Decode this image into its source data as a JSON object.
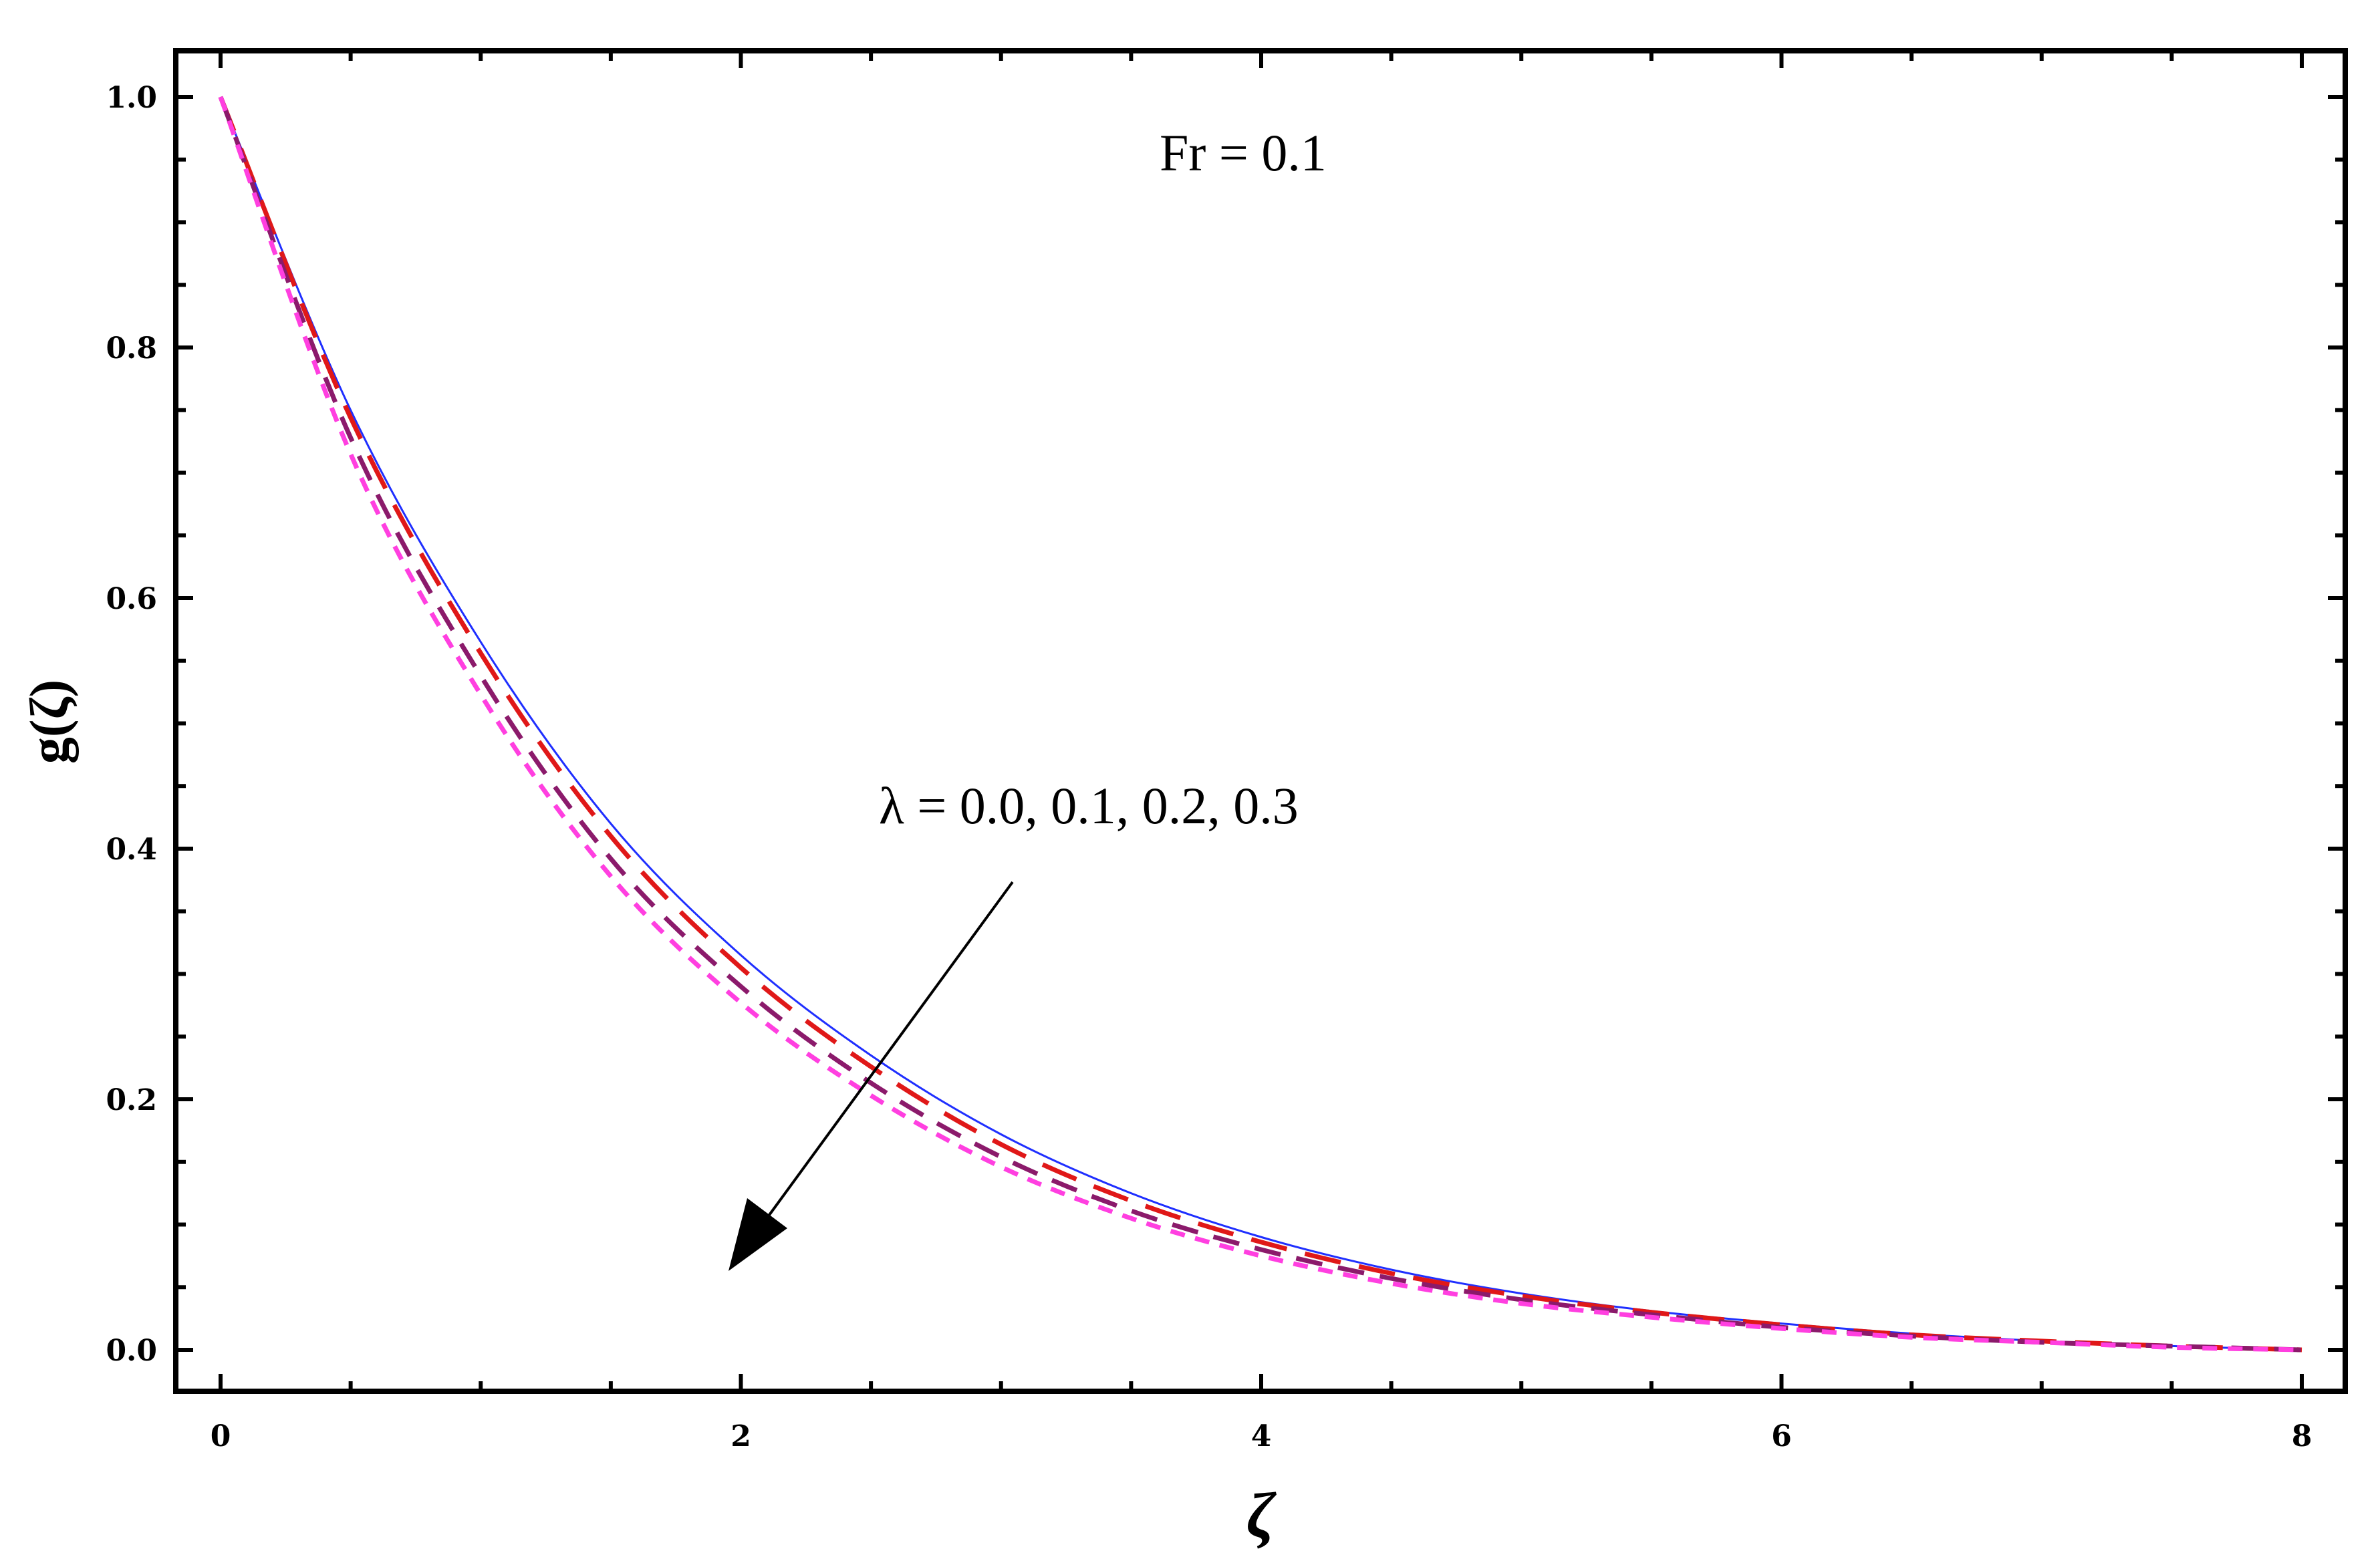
{
  "chart_data": {
    "type": "line",
    "xlabel": "ζ",
    "ylabel": "g(ζ)",
    "xlim": [
      0,
      8
    ],
    "ylim": [
      0.0,
      1.0
    ],
    "x_ticks": [
      "0",
      "2",
      "4",
      "6",
      "8"
    ],
    "y_ticks": [
      "0.0",
      "0.2",
      "0.4",
      "0.6",
      "0.8",
      "1.0"
    ],
    "grid": false,
    "legend": "none",
    "annotations": {
      "param": "Fr = 0.1",
      "lambda": "λ = 0.0, 0.1, 0.2, 0.3"
    },
    "x": [
      0,
      0.5,
      1,
      1.5,
      2,
      2.5,
      3,
      3.5,
      4,
      4.5,
      5,
      5.5,
      6,
      6.5,
      7,
      7.5,
      8
    ],
    "series": [
      {
        "color": "#1f2fff",
        "style": "solid",
        "values": [
          1.0,
          0.75,
          0.565,
          0.42,
          0.315,
          0.235,
          0.172,
          0.125,
          0.09,
          0.064,
          0.045,
          0.031,
          0.021,
          0.013,
          0.007,
          0.003,
          0.0
        ]
      },
      {
        "color": "#e01818",
        "style": "longdash",
        "values": [
          1.0,
          0.744,
          0.556,
          0.41,
          0.305,
          0.226,
          0.164,
          0.119,
          0.086,
          0.061,
          0.043,
          0.03,
          0.02,
          0.012,
          0.007,
          0.003,
          0.0
        ]
      },
      {
        "color": "#8b1a6b",
        "style": "mediumdash",
        "values": [
          1.0,
          0.728,
          0.538,
          0.392,
          0.29,
          0.213,
          0.154,
          0.111,
          0.08,
          0.057,
          0.04,
          0.028,
          0.018,
          0.011,
          0.006,
          0.003,
          0.0
        ]
      },
      {
        "color": "#ff3fe0",
        "style": "shortdash",
        "values": [
          1.0,
          0.715,
          0.523,
          0.378,
          0.277,
          0.203,
          0.146,
          0.105,
          0.075,
          0.053,
          0.037,
          0.026,
          0.017,
          0.01,
          0.006,
          0.002,
          0.0
        ]
      }
    ]
  }
}
